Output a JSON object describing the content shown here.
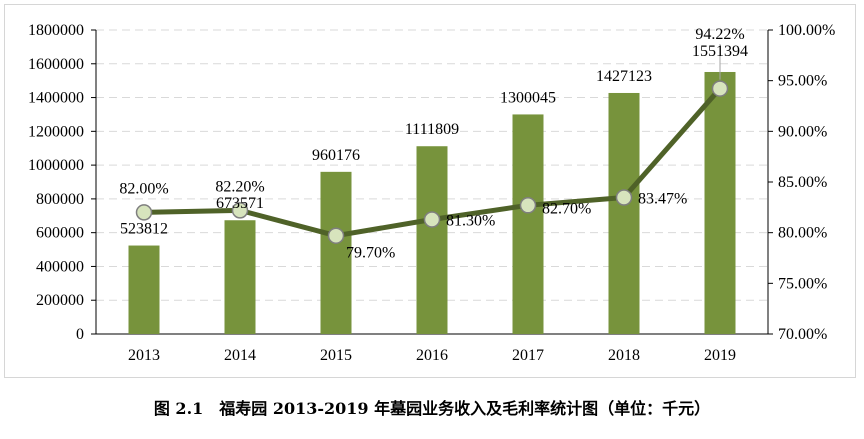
{
  "caption": "图 2.1　福寿园 2013-2019 年墓园业务收入及毛利率统计图（单位：千元）",
  "colors": {
    "bar": "#77933c",
    "line": "#4f6228",
    "marker_fill": "#d7e4bd",
    "grid": "#d9d9d9",
    "axis": "#000000"
  },
  "chart_data": {
    "type": "bar",
    "title": "",
    "xlabel": "",
    "ylabel": "",
    "categories": [
      "2013",
      "2014",
      "2015",
      "2016",
      "2017",
      "2018",
      "2019"
    ],
    "ylim": [
      0,
      1800000
    ],
    "y_ticks": [
      "0",
      "200000",
      "400000",
      "600000",
      "800000",
      "1000000",
      "1200000",
      "1400000",
      "1600000",
      "1800000"
    ],
    "y2lim": [
      70,
      100
    ],
    "y2_ticks": [
      "70.00%",
      "75.00%",
      "80.00%",
      "85.00%",
      "90.00%",
      "95.00%",
      "100.00%"
    ],
    "grid": true,
    "legend": "none",
    "series": [
      {
        "type": "bar",
        "axis": "left",
        "values": [
          523812,
          673571,
          960176,
          1111809,
          1300045,
          1427123,
          1551394
        ],
        "labels": [
          "523812",
          "673571",
          "960176",
          "1111809",
          "1300045",
          "1427123",
          "1551394"
        ]
      },
      {
        "type": "line",
        "axis": "right",
        "values": [
          82.0,
          82.2,
          79.7,
          81.3,
          82.7,
          83.47,
          94.22
        ],
        "labels": [
          "82.00%",
          "82.20%",
          "79.70%",
          "81.30%",
          "82.70%",
          "83.47%",
          "94.22%"
        ]
      }
    ]
  }
}
